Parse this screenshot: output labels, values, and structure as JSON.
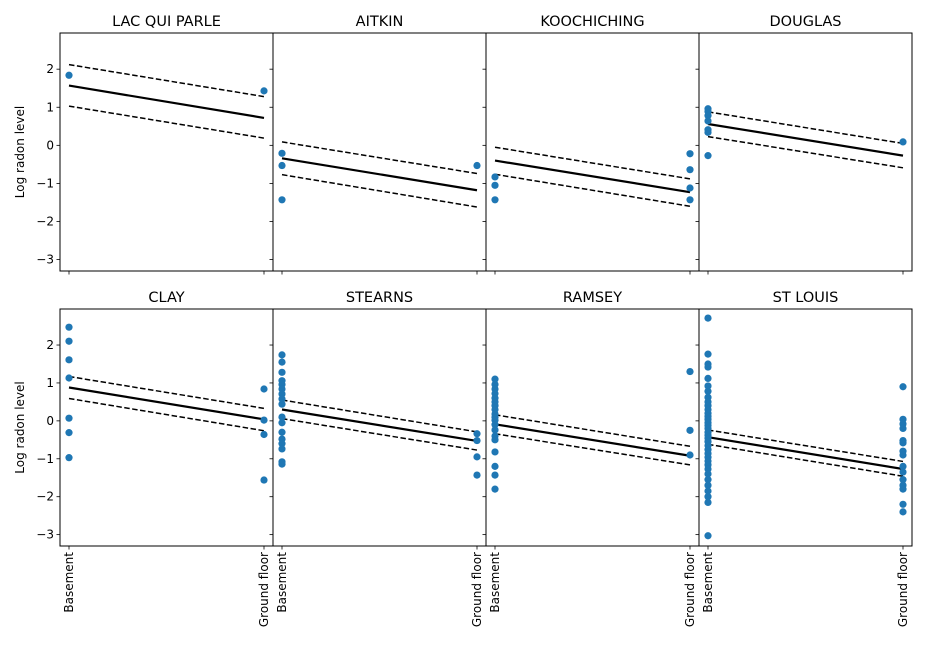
{
  "chart_data": {
    "type": "scatter",
    "ylabel": "Log radon level",
    "ylim": [
      -3.3,
      2.95
    ],
    "yticks": [
      -3,
      -2,
      -1,
      0,
      1,
      2
    ],
    "ytick_labels": [
      "−3",
      "−2",
      "−1",
      "0",
      "1",
      "2"
    ],
    "x_categories": [
      "Basement",
      "Ground floor"
    ],
    "point_color": "#1f77b4",
    "line_color": "#000000",
    "panels": [
      {
        "title": "LAC QUI PARLE",
        "fit": [
          1.57,
          0.72
        ],
        "ci_upper": [
          2.12,
          1.28
        ],
        "ci_lower": [
          1.03,
          0.19
        ],
        "basement": [
          1.84
        ],
        "ground_floor": [
          1.43
        ]
      },
      {
        "title": "AITKIN",
        "fit": [
          -0.34,
          -1.18
        ],
        "ci_upper": [
          0.09,
          -0.74
        ],
        "ci_lower": [
          -0.77,
          -1.62
        ],
        "basement": [
          -0.21,
          -0.53,
          -1.43
        ],
        "ground_floor": [
          -0.53
        ]
      },
      {
        "title": "KOOCHICHING",
        "fit": [
          -0.4,
          -1.23
        ],
        "ci_upper": [
          -0.05,
          -0.88
        ],
        "ci_lower": [
          -0.76,
          -1.6
        ],
        "basement": [
          -0.83,
          -1.05,
          -1.43
        ],
        "ground_floor": [
          -0.22,
          -0.64,
          -1.12,
          -1.43
        ]
      },
      {
        "title": "DOUGLAS",
        "fit": [
          0.56,
          -0.27
        ],
        "ci_upper": [
          0.88,
          0.05
        ],
        "ci_lower": [
          0.23,
          -0.59
        ],
        "basement": [
          0.96,
          0.89,
          0.78,
          0.64,
          0.41,
          0.34,
          -0.27
        ],
        "ground_floor": [
          0.09
        ]
      },
      {
        "title": "CLAY",
        "fit": [
          0.88,
          0.04
        ],
        "ci_upper": [
          1.17,
          0.33
        ],
        "ci_lower": [
          0.59,
          -0.26
        ],
        "basement": [
          2.47,
          2.1,
          1.61,
          1.13,
          0.07,
          -0.31,
          -0.97
        ],
        "ground_floor": [
          0.84,
          0.02,
          -0.36,
          -1.56
        ]
      },
      {
        "title": "STEARNS",
        "fit": [
          0.3,
          -0.53
        ],
        "ci_upper": [
          0.55,
          -0.29
        ],
        "ci_lower": [
          0.06,
          -0.77
        ],
        "basement": [
          1.74,
          1.55,
          1.28,
          1.06,
          0.96,
          0.84,
          0.71,
          0.58,
          0.44,
          0.1,
          -0.05,
          -0.3,
          -0.48,
          -0.6,
          -0.74,
          -1.08,
          -1.14
        ],
        "ground_floor": [
          -0.34,
          -0.52,
          -0.95,
          -1.43
        ]
      },
      {
        "title": "RAMSEY",
        "fit": [
          -0.09,
          -0.92
        ],
        "ci_upper": [
          0.16,
          -0.67
        ],
        "ci_lower": [
          -0.34,
          -1.16
        ],
        "basement": [
          1.1,
          0.96,
          0.84,
          0.72,
          0.6,
          0.5,
          0.4,
          0.3,
          0.18,
          0.1,
          0.02,
          -0.1,
          -0.24,
          -0.4,
          -0.5,
          -0.82,
          -1.2,
          -1.43,
          -1.8
        ],
        "ground_floor": [
          1.3,
          -0.25,
          -0.9
        ]
      },
      {
        "title": "ST LOUIS",
        "fit": [
          -0.43,
          -1.27
        ],
        "ci_upper": [
          -0.24,
          -1.07
        ],
        "ci_lower": [
          -0.62,
          -1.46
        ],
        "basement": [
          2.71,
          1.76,
          1.5,
          1.42,
          1.12,
          0.92,
          0.78,
          0.62,
          0.5,
          0.4,
          0.3,
          0.2,
          0.12,
          0.04,
          -0.05,
          -0.12,
          -0.2,
          -0.3,
          -0.38,
          -0.46,
          -0.55,
          -0.65,
          -0.76,
          -0.86,
          -0.96,
          -1.06,
          -1.16,
          -1.27,
          -1.4,
          -1.55,
          -1.7,
          -1.85,
          -2.0,
          -2.15,
          -3.03
        ],
        "ground_floor": [
          0.9,
          0.04,
          -0.08,
          -0.2,
          -0.52,
          -0.58,
          -0.8,
          -0.9,
          -1.2,
          -1.35,
          -1.55,
          -1.7,
          -1.8,
          -2.2,
          -2.4
        ]
      }
    ]
  }
}
